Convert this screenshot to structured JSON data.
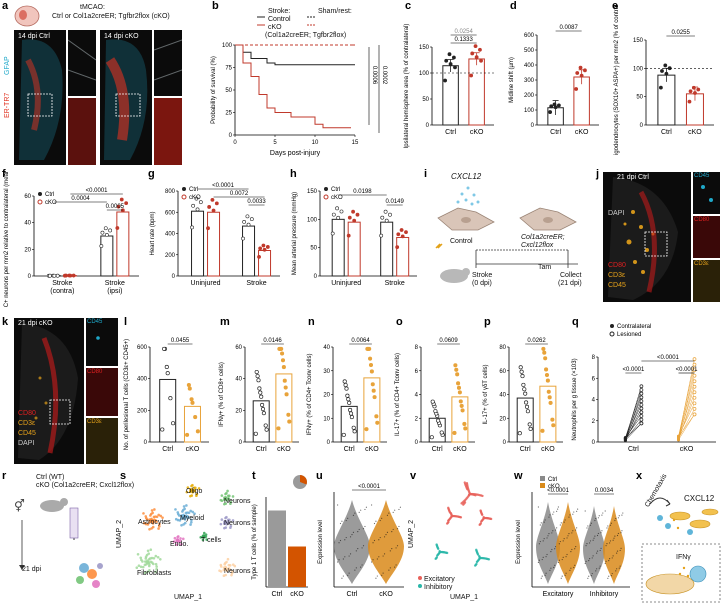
{
  "panels": {
    "a": {
      "label": "a",
      "header_line1": "tMCAO:",
      "header_line2": "Ctrl or Col1a2creER; Tgfbr2flox (cKO)",
      "ctrl_title": "14 dpi Ctrl",
      "cko_title": "14 dpi cKO",
      "stain_gfap": "GFAP",
      "stain_er": "ER-TR7",
      "colors": {
        "gfap": "#1fa8c9",
        "er": "#e0311f"
      }
    },
    "b": {
      "label": "b",
      "legend_stroke": "Stroke:",
      "legend_sham": "Sham/rest:",
      "legend_control": "Control",
      "legend_cko": "cKO",
      "legend_genotype": "(Col1a2creER; Tgfbr2flox)",
      "xlabel": "Days post-injury",
      "ylabel": "Probability of survival (%)",
      "pvalues": [
        "0.0006",
        "0.0002"
      ]
    },
    "c": {
      "label": "c",
      "ylabel": "Ipsilateral hemisphere area (% of contralateral)",
      "p1": "0.0254",
      "p2": "0.1333"
    },
    "d": {
      "label": "d",
      "ylabel": "Midline shift (µm)",
      "p": "0.0087"
    },
    "e": {
      "label": "e",
      "ylabel": "No. of oligodendrocytes (SOX10+ ASPA+) per mm2 (% of contralateral)",
      "p": "0.0255"
    },
    "f": {
      "label": "f",
      "ylabel": "No. of FJC+ neurons per mm2 relative to contralateral (mean per group)",
      "p": [
        "0.0004",
        "<0.0001",
        "0.0005"
      ]
    },
    "g": {
      "label": "g",
      "ylabel": "Heart rate (bpm)",
      "p": [
        "<0.0001",
        "0.0072",
        "0.0033"
      ]
    },
    "h": {
      "label": "h",
      "ylabel": "Mean arterial pressure (mmHg)",
      "p": [
        "0.0198",
        "0.0149"
      ]
    },
    "i": {
      "label": "i",
      "ligand": "CXCL12",
      "control": "Control",
      "cko": "Col1a2creER; Cxcl12flox",
      "tam": "Tam",
      "stroke": "Stroke",
      "stroke_time": "(0 dpi)",
      "collect": "Collect",
      "collect_time": "(21 dpi)"
    },
    "j": {
      "label": "j",
      "title": "21 dpi Ctrl",
      "stains": [
        "DAPI",
        "CD80",
        "CD3ε",
        "CD45",
        "Merged"
      ],
      "side": [
        "CD45",
        "CD80",
        "CD3ε"
      ]
    },
    "k": {
      "label": "k",
      "title": "21 dpi cKO",
      "stains": [
        "DAPI",
        "CD80",
        "CD3ε",
        "CD45",
        "Merged"
      ],
      "side": [
        "CD45",
        "CD80",
        "CD3ε"
      ]
    },
    "l": {
      "label": "l",
      "ylabel": "No. of perilesional T cells (CD3ε+ CD45+)",
      "p": "0.0455"
    },
    "m": {
      "label": "m",
      "ylabel": "IFNγ+ (% of CD8+ cells)",
      "p": "0.0146"
    },
    "n": {
      "label": "n",
      "ylabel": "IFNγ+ (% of CD4+ Tconv cells)",
      "p": "0.0064"
    },
    "o": {
      "label": "o",
      "ylabel": "IL-17+ (% of CD4+ Tconv cells)",
      "p": "0.0609"
    },
    "p": {
      "label": "p",
      "ylabel": "IL-17+ (% of γδT cells)",
      "p": "0.0262"
    },
    "q": {
      "label": "q",
      "legend": [
        "Contralateral",
        "Lesioned"
      ],
      "ylabel": "Neutrophils per g tissue (×103)",
      "p": [
        "<0.0001",
        "<0.0001",
        "<0.0001"
      ]
    },
    "r": {
      "label": "r",
      "line1": "Ctrl (WT)",
      "line2": "cKO (Col1a2creER; Cxcl12flox)",
      "time": "21 dpi"
    },
    "s": {
      "label": "s",
      "clusters": [
        "Oligo",
        "Myeloid",
        "Astrocytes",
        "Neurons",
        "Neurons",
        "T cells",
        "Endo.",
        "Fibroblasts",
        "Neurons"
      ],
      "xlabel": "UMAP_1",
      "ylabel": "UMAP_2"
    },
    "t": {
      "label": "t",
      "ylabel": "Type 1 T cells (% of sample)"
    },
    "u": {
      "label": "u",
      "ylabel": "Expression level",
      "p": "<0.0001"
    },
    "v": {
      "label": "v",
      "legend": [
        "Excitatory",
        "Inhibitory"
      ],
      "xlabel": "UMAP_1",
      "ylabel": "UMAP_2"
    },
    "w": {
      "label": "w",
      "legend": [
        "Ctrl",
        "cKO"
      ],
      "ylabel": "Expression level",
      "p": [
        "<0.0001",
        "0.0034"
      ],
      "xcats": [
        "Excitatory",
        "Inhibitory"
      ]
    },
    "x": {
      "label": "x",
      "chemotaxis": "Chemotaxis",
      "ligand": "CXCL12",
      "cytokine": "IFNγ"
    }
  },
  "chart_data": [
    {
      "panel": "b",
      "type": "line",
      "xlabel": "Days post-injury",
      "ylabel": "Probability of survival (%)",
      "xlim": [
        0,
        15
      ],
      "ylim": [
        0,
        100
      ],
      "xticks": [
        0,
        5,
        10,
        15
      ],
      "yticks": [
        0,
        25,
        50,
        75,
        100
      ],
      "series": [
        {
          "name": "Control",
          "x": [
            0,
            1,
            2,
            4,
            5,
            15
          ],
          "y": [
            100,
            92,
            85,
            80,
            78,
            78
          ],
          "color": "#222222"
        },
        {
          "name": "cKO",
          "x": [
            0,
            1,
            2,
            3,
            4,
            5,
            7,
            10,
            11,
            14
          ],
          "y": [
            100,
            80,
            65,
            45,
            30,
            25,
            20,
            12,
            8,
            8
          ],
          "color": "#c0392b"
        },
        {
          "name": "Control",
          "x": [
            0,
            15
          ],
          "y": [
            100,
            100
          ],
          "color": "#222222"
        },
        {
          "name": "cKO",
          "x": [
            0,
            15
          ],
          "y": [
            100,
            100
          ],
          "color": "#c0392b"
        }
      ]
    },
    {
      "panel": "c",
      "type": "bar",
      "categories": [
        "Ctrl",
        "cKO"
      ],
      "values": [
        114,
        127
      ],
      "ylim": [
        0,
        150
      ],
      "yticks": [
        0,
        50,
        100,
        150
      ],
      "colors": [
        "#222222",
        "#c0392b"
      ]
    },
    {
      "panel": "d",
      "type": "bar",
      "categories": [
        "Ctrl",
        "cKO"
      ],
      "values": [
        115,
        320
      ],
      "ylim": [
        0,
        600
      ],
      "yticks": [
        0,
        100,
        200,
        300,
        400,
        500,
        600
      ],
      "colors": [
        "#222222",
        "#c0392b"
      ]
    },
    {
      "panel": "e",
      "type": "bar",
      "categories": [
        "Ctrl",
        "cKO"
      ],
      "values": [
        88,
        55
      ],
      "ylim": [
        0,
        150
      ],
      "yticks": [
        0,
        50,
        100,
        150
      ],
      "colors": [
        "#222222",
        "#c0392b"
      ]
    },
    {
      "panel": "f",
      "type": "bar",
      "categories": [
        "Stroke (contra)",
        "Stroke (ipsi)"
      ],
      "series": [
        {
          "name": "Ctrl",
          "values": [
            0.2,
            30
          ]
        },
        {
          "name": "cKO",
          "values": [
            0.3,
            48
          ]
        }
      ],
      "ylim": [
        0,
        60
      ],
      "yticks": [
        0,
        20,
        40,
        60
      ]
    },
    {
      "panel": "g",
      "type": "bar",
      "categories": [
        "Uninjured",
        "Stroke"
      ],
      "series": [
        {
          "name": "Ctrl",
          "values": [
            610,
            470
          ]
        },
        {
          "name": "cKO",
          "values": [
            600,
            240
          ]
        }
      ],
      "ylim": [
        0,
        800
      ],
      "yticks": [
        0,
        200,
        400,
        600,
        800
      ]
    },
    {
      "panel": "h",
      "type": "bar",
      "categories": [
        "Uninjured",
        "Stroke"
      ],
      "series": [
        {
          "name": "Ctrl",
          "values": [
            100,
            95
          ]
        },
        {
          "name": "cKO",
          "values": [
            95,
            68
          ]
        }
      ],
      "ylim": [
        0,
        150
      ],
      "yticks": [
        0,
        50,
        100,
        150
      ]
    },
    {
      "panel": "l",
      "type": "bar",
      "categories": [
        "Ctrl",
        "cKO"
      ],
      "values": [
        395,
        225
      ],
      "ylim": [
        0,
        600
      ],
      "yticks": [
        0,
        200,
        400,
        600
      ],
      "colors": [
        "#222222",
        "#e8a33a"
      ]
    },
    {
      "panel": "m",
      "type": "bar",
      "categories": [
        "Ctrl",
        "cKO"
      ],
      "values": [
        26,
        43
      ],
      "ylim": [
        0,
        60
      ],
      "yticks": [
        0,
        20,
        40,
        60
      ],
      "colors": [
        "#222222",
        "#e8a33a"
      ]
    },
    {
      "panel": "n",
      "type": "bar",
      "categories": [
        "Ctrl",
        "cKO"
      ],
      "values": [
        15,
        27
      ],
      "ylim": [
        0,
        40
      ],
      "yticks": [
        0,
        10,
        20,
        30,
        40
      ],
      "colors": [
        "#222222",
        "#e8a33a"
      ]
    },
    {
      "panel": "o",
      "type": "bar",
      "categories": [
        "Ctrl",
        "cKO"
      ],
      "values": [
        2,
        3.8
      ],
      "ylim": [
        0,
        8
      ],
      "yticks": [
        0,
        2,
        4,
        6,
        8
      ],
      "colors": [
        "#222222",
        "#e8a33a"
      ]
    },
    {
      "panel": "p",
      "type": "bar",
      "categories": [
        "Ctrl",
        "cKO"
      ],
      "values": [
        37,
        47
      ],
      "ylim": [
        0,
        80
      ],
      "yticks": [
        0,
        20,
        40,
        60,
        80
      ],
      "colors": [
        "#222222",
        "#e8a33a"
      ]
    },
    {
      "panel": "q",
      "type": "scatter",
      "categories": [
        "Ctrl",
        "cKO"
      ],
      "ylim": [
        0,
        8
      ],
      "yticks": [
        0,
        2,
        4,
        6,
        8
      ],
      "series": [
        {
          "name": "Contralateral",
          "values": [
            0.3,
            0.4
          ]
        },
        {
          "name": "Lesioned",
          "values": [
            3.5,
            5.2
          ]
        }
      ]
    },
    {
      "panel": "t",
      "type": "bar",
      "categories": [
        "Ctrl",
        "cKO"
      ],
      "values": [
        85,
        45
      ],
      "ylim": [
        0,
        100
      ],
      "colors": [
        "#9a9a9a",
        "#d35400"
      ]
    }
  ]
}
